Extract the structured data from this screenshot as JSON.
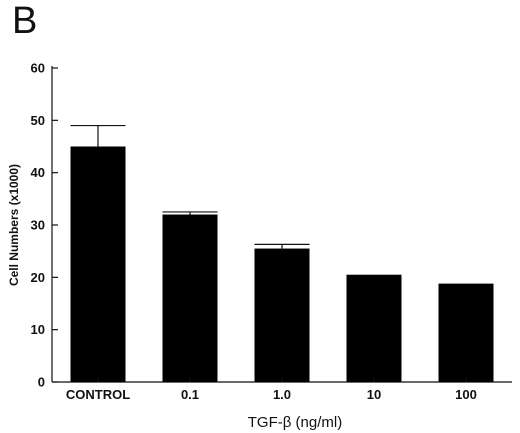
{
  "panel_label": "B",
  "chart_data": {
    "type": "bar",
    "categories": [
      "CONTROL",
      "0.1",
      "1.0",
      "10",
      "100"
    ],
    "values": [
      45,
      32,
      25.5,
      20.5,
      18.8
    ],
    "errors": [
      4,
      0.5,
      0.8,
      0,
      0
    ],
    "title": "",
    "xlabel": "TGF-β  (ng/ml)",
    "ylabel": "Cell Numbers (x1000)",
    "ylim": [
      0,
      60
    ],
    "yticks": [
      0,
      10,
      20,
      30,
      40,
      50,
      60
    ],
    "bar_color": "#000000",
    "grid": false,
    "legend": "none"
  }
}
